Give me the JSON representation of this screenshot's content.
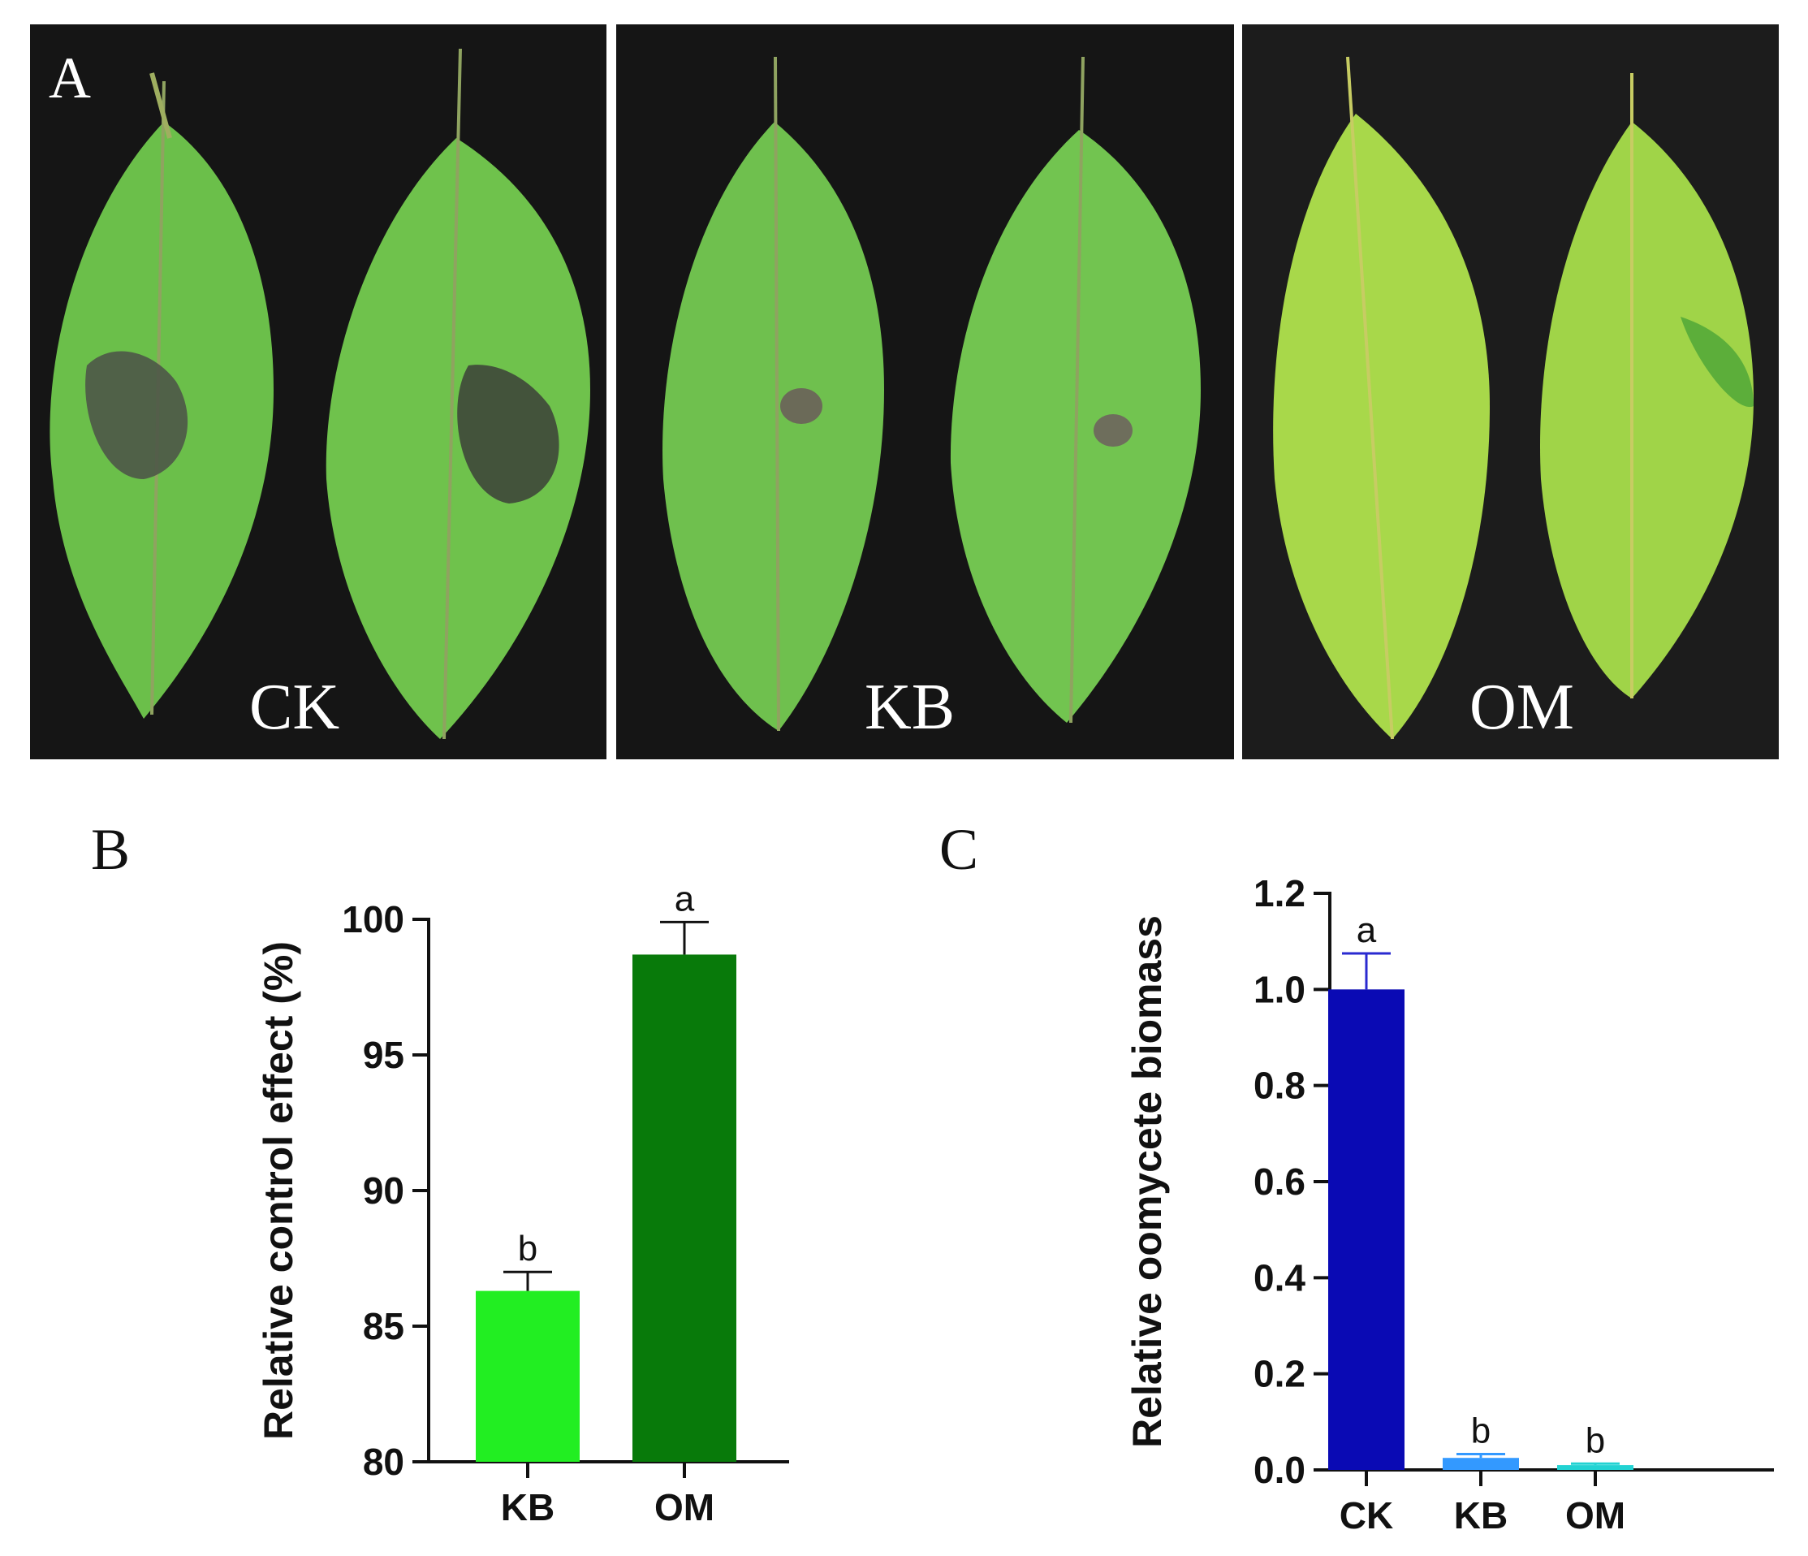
{
  "panel_a": {
    "label": "A",
    "photos": [
      {
        "caption": "CK",
        "leaf_color": "#6bbf4a",
        "lesion": "large"
      },
      {
        "caption": "KB",
        "leaf_color": "#6fc04e",
        "lesion": "small"
      },
      {
        "caption": "OM",
        "leaf_color": "#a8d84a",
        "lesion": "none"
      }
    ]
  },
  "chart_data": [
    {
      "panel_label": "B",
      "type": "bar",
      "categories": [
        "KB",
        "OM"
      ],
      "values": [
        86.3,
        98.7
      ],
      "errors": [
        0.7,
        1.2
      ],
      "significance": [
        "b",
        "a"
      ],
      "colors": [
        "#22ee22",
        "#087a0a"
      ],
      "ylabel": "Relative control effect (%)",
      "ylim": [
        80,
        100
      ],
      "yticks": [
        "80",
        "85",
        "90",
        "95",
        "100"
      ]
    },
    {
      "panel_label": "C",
      "type": "bar",
      "categories": [
        "CK",
        "KB",
        "OM"
      ],
      "values": [
        1.0,
        0.025,
        0.01
      ],
      "errors": [
        0.075,
        0.008,
        0.003
      ],
      "significance": [
        "a",
        "b",
        "b"
      ],
      "colors": [
        "#0a0ab4",
        "#3399ff",
        "#22d3d3"
      ],
      "ylabel": "Relative oomycete biomass",
      "ylim": [
        0,
        1.2
      ],
      "yticks": [
        "0.0",
        "0.2",
        "0.4",
        "0.6",
        "0.8",
        "1.0",
        "1.2"
      ]
    }
  ]
}
